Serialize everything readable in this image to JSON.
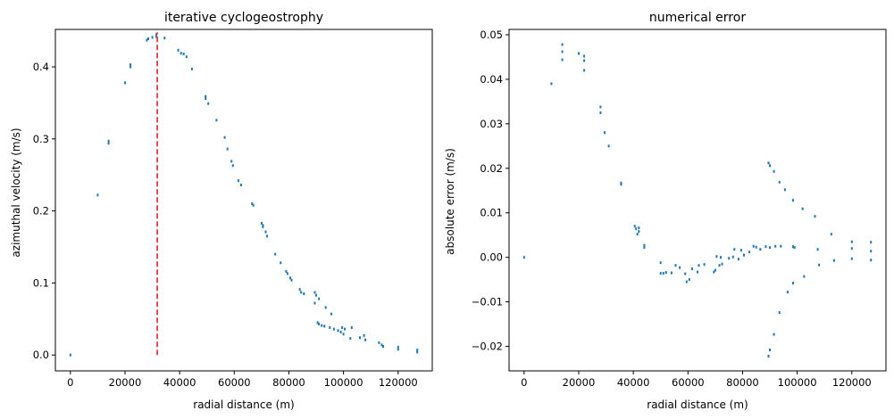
{
  "chart_data": [
    {
      "type": "scatter",
      "title": "iterative cyclogeostrophy",
      "xlabel": "radial distance (m)",
      "ylabel": "azimuthal velocity (m/s)",
      "xlim": [
        -5500,
        132500
      ],
      "ylim": [
        -0.022,
        0.452
      ],
      "xticks": [
        0,
        20000,
        40000,
        60000,
        80000,
        100000,
        120000
      ],
      "xtick_labels": [
        "0",
        "20000",
        "40000",
        "60000",
        "80000",
        "100000",
        "120000"
      ],
      "yticks": [
        0.0,
        0.1,
        0.2,
        0.3,
        0.4
      ],
      "ytick_labels": [
        "0.0",
        "0.1",
        "0.2",
        "0.3",
        "0.4"
      ],
      "grid": false,
      "marker_color": "#1f77b4",
      "vline": {
        "x": 31800,
        "ymin": 0.0,
        "ymax": 0.448,
        "color": "#d62728",
        "style": "dashed"
      },
      "points": [
        [
          0,
          0.0
        ],
        [
          10000,
          0.222
        ],
        [
          14000,
          0.297
        ],
        [
          14000,
          0.294
        ],
        [
          20000,
          0.378
        ],
        [
          22000,
          0.403
        ],
        [
          22000,
          0.4
        ],
        [
          28000,
          0.437
        ],
        [
          28500,
          0.439
        ],
        [
          30000,
          0.441
        ],
        [
          31500,
          0.442
        ],
        [
          31500,
          0.445
        ],
        [
          34500,
          0.44
        ],
        [
          39500,
          0.423
        ],
        [
          40500,
          0.419
        ],
        [
          41500,
          0.418
        ],
        [
          42500,
          0.414
        ],
        [
          44500,
          0.397
        ],
        [
          49500,
          0.359
        ],
        [
          49500,
          0.356
        ],
        [
          50500,
          0.349
        ],
        [
          53500,
          0.326
        ],
        [
          56500,
          0.302
        ],
        [
          57500,
          0.286
        ],
        [
          59000,
          0.269
        ],
        [
          59500,
          0.263
        ],
        [
          61500,
          0.242
        ],
        [
          62500,
          0.236
        ],
        [
          66500,
          0.21
        ],
        [
          67000,
          0.208
        ],
        [
          70000,
          0.183
        ],
        [
          70500,
          0.18
        ],
        [
          70500,
          0.178
        ],
        [
          71500,
          0.171
        ],
        [
          72000,
          0.165
        ],
        [
          75000,
          0.14
        ],
        [
          77000,
          0.128
        ],
        [
          79000,
          0.116
        ],
        [
          79500,
          0.113
        ],
        [
          80500,
          0.107
        ],
        [
          81000,
          0.104
        ],
        [
          84000,
          0.091
        ],
        [
          84500,
          0.087
        ],
        [
          85500,
          0.085
        ],
        [
          89500,
          0.087
        ],
        [
          90000,
          0.083
        ],
        [
          91000,
          0.078
        ],
        [
          93500,
          0.066
        ],
        [
          95500,
          0.057
        ],
        [
          89500,
          0.072
        ],
        [
          90500,
          0.045
        ],
        [
          91000,
          0.043
        ],
        [
          92000,
          0.041
        ],
        [
          93000,
          0.04
        ],
        [
          95000,
          0.038
        ],
        [
          96500,
          0.036
        ],
        [
          98000,
          0.034
        ],
        [
          99000,
          0.032
        ],
        [
          100000,
          0.029
        ],
        [
          99500,
          0.038
        ],
        [
          100500,
          0.036
        ],
        [
          103000,
          0.038
        ],
        [
          102500,
          0.023
        ],
        [
          106000,
          0.024
        ],
        [
          107500,
          0.027
        ],
        [
          108000,
          0.021
        ],
        [
          113000,
          0.017
        ],
        [
          114000,
          0.014
        ],
        [
          114500,
          0.012
        ],
        [
          120000,
          0.011
        ],
        [
          120000,
          0.008
        ],
        [
          127000,
          0.007
        ],
        [
          127000,
          0.004
        ]
      ]
    },
    {
      "type": "scatter",
      "title": "numerical error",
      "xlabel": "radial distance (m)",
      "ylabel": "absolute error (m/s)",
      "xlim": [
        -5500,
        132500
      ],
      "ylim": [
        -0.0255,
        0.0512
      ],
      "xticks": [
        0,
        20000,
        40000,
        60000,
        80000,
        100000,
        120000
      ],
      "xtick_labels": [
        "0",
        "20000",
        "40000",
        "60000",
        "80000",
        "100000",
        "120000"
      ],
      "yticks": [
        -0.02,
        -0.01,
        0.0,
        0.01,
        0.02,
        0.03,
        0.04,
        0.05
      ],
      "ytick_labels": [
        "−0.02",
        "−0.01",
        "0.00",
        "0.01",
        "0.02",
        "0.03",
        "0.04",
        "0.05"
      ],
      "grid": false,
      "marker_color": "#1f77b4",
      "points": [
        [
          0,
          0.0
        ],
        [
          10000,
          0.039
        ],
        [
          14000,
          0.0478
        ],
        [
          14000,
          0.0462
        ],
        [
          14000,
          0.0444
        ],
        [
          20000,
          0.0458
        ],
        [
          22000,
          0.0452
        ],
        [
          22000,
          0.0442
        ],
        [
          22000,
          0.042
        ],
        [
          28000,
          0.0338
        ],
        [
          28000,
          0.0325
        ],
        [
          29500,
          0.028
        ],
        [
          31000,
          0.025
        ],
        [
          35500,
          0.0167
        ],
        [
          35500,
          0.0164
        ],
        [
          40500,
          0.007
        ],
        [
          41000,
          0.0064
        ],
        [
          41500,
          0.0052
        ],
        [
          42000,
          0.0066
        ],
        [
          42000,
          0.0058
        ],
        [
          44000,
          0.0027
        ],
        [
          44000,
          0.0022
        ],
        [
          50000,
          -0.0012
        ],
        [
          50000,
          -0.0036
        ],
        [
          51000,
          -0.0036
        ],
        [
          52000,
          -0.0034
        ],
        [
          54000,
          -0.0035
        ],
        [
          55500,
          -0.0018
        ],
        [
          57000,
          -0.0023
        ],
        [
          59000,
          -0.0037
        ],
        [
          59500,
          -0.0055
        ],
        [
          60500,
          -0.005
        ],
        [
          61500,
          -0.0026
        ],
        [
          63500,
          -0.0033
        ],
        [
          64000,
          -0.0018
        ],
        [
          66000,
          -0.0016
        ],
        [
          69500,
          -0.0033
        ],
        [
          70000,
          -0.0029
        ],
        [
          71500,
          -0.0018
        ],
        [
          72500,
          -0.0015
        ],
        [
          70500,
          0.0002
        ],
        [
          72000,
          0.0
        ],
        [
          75000,
          -0.0002
        ],
        [
          76500,
          0.0001
        ],
        [
          77000,
          0.0018
        ],
        [
          78500,
          -0.0004
        ],
        [
          79500,
          0.0016
        ],
        [
          80500,
          0.0005
        ],
        [
          82500,
          0.0012
        ],
        [
          84000,
          0.0025
        ],
        [
          85000,
          0.0023
        ],
        [
          86500,
          0.0018
        ],
        [
          88500,
          0.0024
        ],
        [
          90000,
          0.0022
        ],
        [
          92000,
          0.0025
        ],
        [
          94000,
          0.0025
        ],
        [
          98500,
          0.0024
        ],
        [
          99000,
          0.0022
        ],
        [
          89500,
          0.0212
        ],
        [
          90000,
          0.0206
        ],
        [
          91500,
          0.0193
        ],
        [
          93500,
          0.0169
        ],
        [
          95500,
          0.0152
        ],
        [
          98500,
          0.0128
        ],
        [
          102000,
          0.0109
        ],
        [
          106500,
          0.0092
        ],
        [
          112500,
          0.0052
        ],
        [
          120000,
          0.0035
        ],
        [
          127000,
          0.0034
        ],
        [
          89500,
          -0.0222
        ],
        [
          90000,
          -0.0208
        ],
        [
          91500,
          -0.0173
        ],
        [
          93500,
          -0.0124
        ],
        [
          96500,
          -0.0078
        ],
        [
          98500,
          -0.0058
        ],
        [
          102500,
          -0.0043
        ],
        [
          107500,
          0.0018
        ],
        [
          108000,
          -0.0017
        ],
        [
          113500,
          -0.0007
        ],
        [
          120000,
          -0.0003
        ],
        [
          120000,
          0.002
        ],
        [
          127000,
          0.0014
        ],
        [
          127000,
          -0.0006
        ]
      ]
    }
  ]
}
